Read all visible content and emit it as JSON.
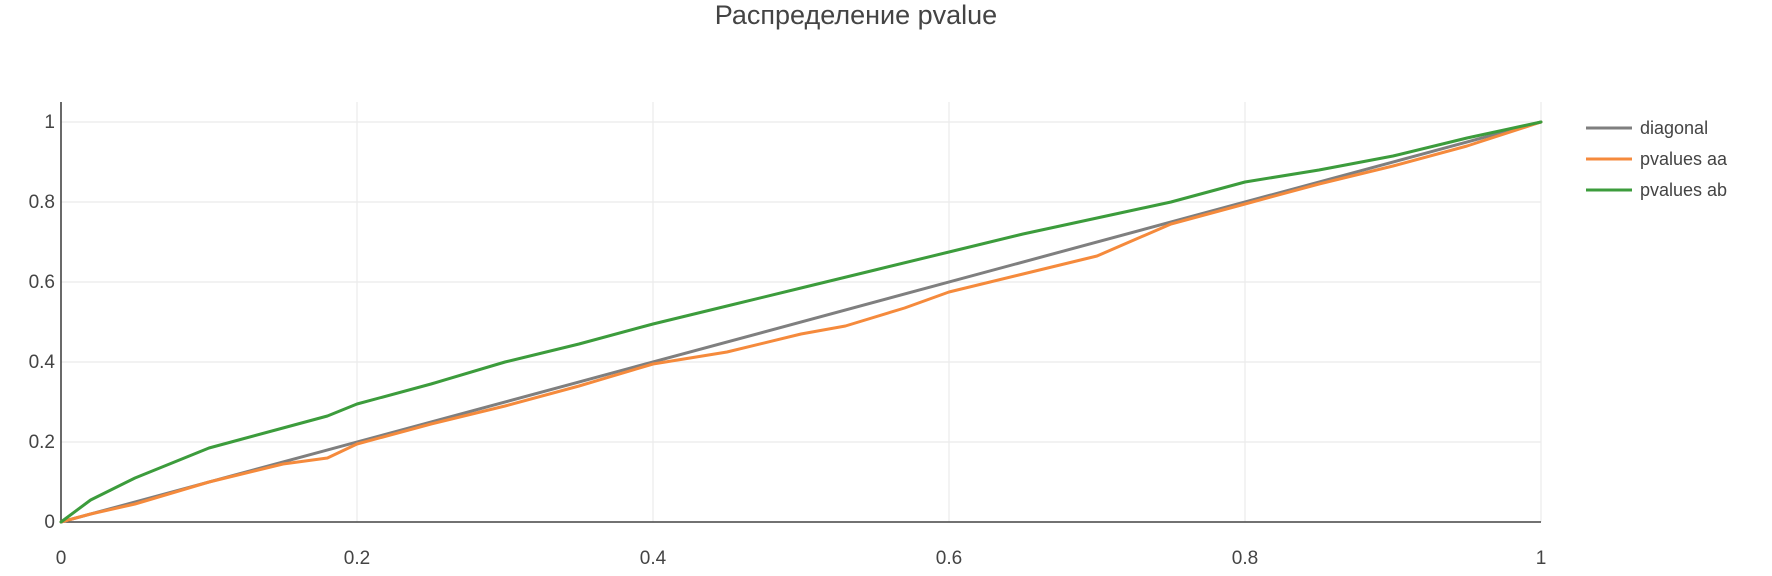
{
  "chart_data": {
    "type": "line",
    "title": "Распределение pvalue",
    "xlabel": "",
    "ylabel": "",
    "xlim": [
      0,
      1
    ],
    "ylim": [
      0,
      1.05
    ],
    "x_ticks": [
      0,
      0.2,
      0.4,
      0.6,
      0.8,
      1
    ],
    "x_tick_labels": [
      "0",
      "0.2",
      "0.4",
      "0.6",
      "0.8",
      "1"
    ],
    "y_ticks": [
      0,
      0.2,
      0.4,
      0.6,
      0.8,
      1
    ],
    "y_tick_labels": [
      "0",
      "0.2",
      "0.4",
      "0.6",
      "0.8",
      "1"
    ],
    "grid": true,
    "legend_position": "top-right",
    "series": [
      {
        "name": "diagonal",
        "color": "#7f7f7f",
        "x": [
          0,
          1
        ],
        "y": [
          0,
          1
        ]
      },
      {
        "name": "pvalues aa",
        "color": "#f58a3c",
        "x": [
          0,
          0.02,
          0.05,
          0.1,
          0.15,
          0.18,
          0.2,
          0.25,
          0.3,
          0.35,
          0.4,
          0.45,
          0.5,
          0.53,
          0.57,
          0.6,
          0.65,
          0.7,
          0.75,
          0.8,
          0.85,
          0.9,
          0.95,
          1.0
        ],
        "y": [
          0,
          0.02,
          0.045,
          0.1,
          0.145,
          0.16,
          0.195,
          0.245,
          0.29,
          0.34,
          0.395,
          0.425,
          0.47,
          0.49,
          0.535,
          0.575,
          0.62,
          0.665,
          0.745,
          0.795,
          0.845,
          0.89,
          0.94,
          1.0
        ]
      },
      {
        "name": "pvalues ab",
        "color": "#3c9c3c",
        "x": [
          0,
          0.02,
          0.05,
          0.08,
          0.1,
          0.12,
          0.15,
          0.18,
          0.2,
          0.25,
          0.3,
          0.35,
          0.4,
          0.45,
          0.5,
          0.55,
          0.6,
          0.65,
          0.7,
          0.75,
          0.8,
          0.85,
          0.9,
          0.95,
          1.0
        ],
        "y": [
          0,
          0.055,
          0.11,
          0.155,
          0.185,
          0.205,
          0.235,
          0.265,
          0.295,
          0.345,
          0.4,
          0.445,
          0.495,
          0.54,
          0.585,
          0.63,
          0.675,
          0.72,
          0.76,
          0.8,
          0.85,
          0.88,
          0.915,
          0.96,
          1.0
        ]
      }
    ]
  }
}
